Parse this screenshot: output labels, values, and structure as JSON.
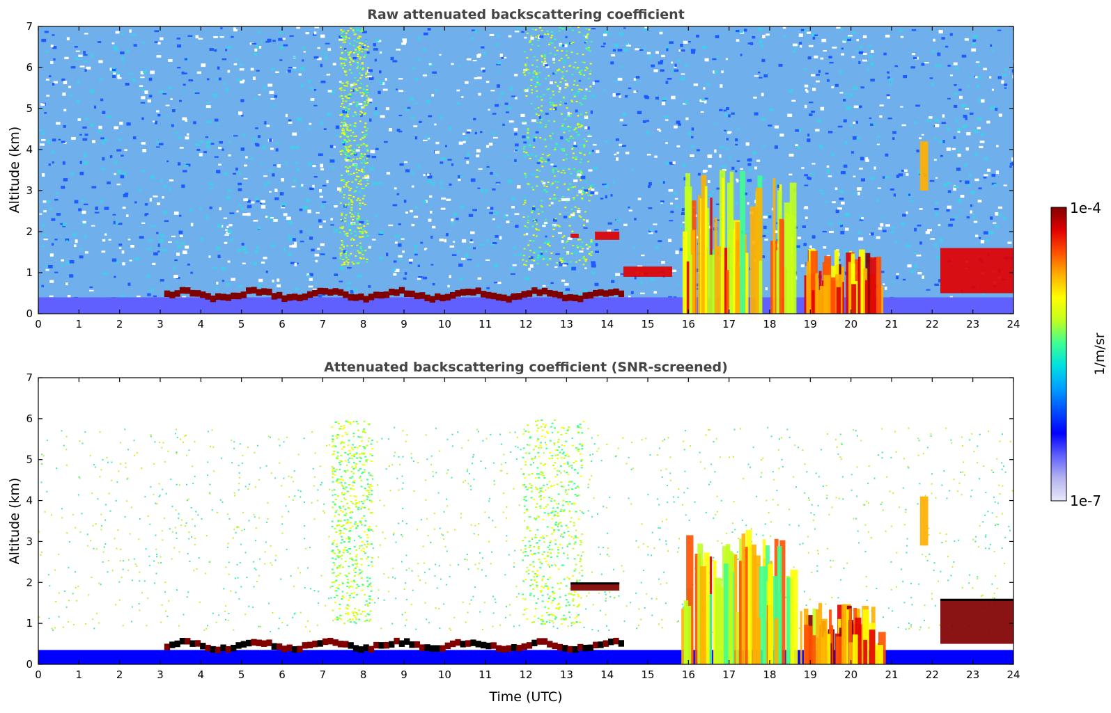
{
  "chart_data": [
    {
      "type": "heatmap",
      "title": "Raw attenuated backscattering coefficient",
      "xlabel": "",
      "ylabel": "Altitude (km)",
      "xlim": [
        0,
        24
      ],
      "ylim": [
        0,
        7
      ],
      "x_ticks": [
        "0",
        "1",
        "2",
        "3",
        "4",
        "5",
        "6",
        "7",
        "8",
        "9",
        "10",
        "11",
        "12",
        "13",
        "14",
        "15",
        "16",
        "17",
        "18",
        "19",
        "20",
        "21",
        "22",
        "23",
        "24"
      ],
      "y_ticks": [
        "0",
        "1",
        "2",
        "3",
        "4",
        "5",
        "6",
        "7"
      ],
      "features": [
        {
          "kind": "near-surface layer",
          "x": [
            0,
            24
          ],
          "y": [
            0,
            0.4
          ],
          "level": 0.18
        },
        {
          "kind": "boundary layer top",
          "x": [
            3.1,
            14.4
          ],
          "y": [
            0.3,
            0.7
          ],
          "level": 0.98
        },
        {
          "kind": "aerosol plume",
          "x": [
            7.4,
            8.1
          ],
          "y": [
            1.2,
            7
          ],
          "level": 0.62
        },
        {
          "kind": "aerosol plume",
          "x": [
            11.9,
            13.6
          ],
          "y": [
            1.2,
            7
          ],
          "level": 0.6
        },
        {
          "kind": "cloud layer",
          "x": [
            13.1,
            13.3
          ],
          "y": [
            1.85,
            1.95
          ],
          "level": 0.96
        },
        {
          "kind": "cloud layer",
          "x": [
            13.7,
            14.3
          ],
          "y": [
            1.8,
            2.0
          ],
          "level": 0.96
        },
        {
          "kind": "cloud layer",
          "x": [
            14.4,
            15.6
          ],
          "y": [
            0.9,
            1.15
          ],
          "level": 0.96
        },
        {
          "kind": "cumulus",
          "x": [
            15.8,
            18.8
          ],
          "y": [
            0,
            3.5
          ],
          "level": 0.8
        },
        {
          "kind": "precipitation",
          "x": [
            18.8,
            20.7
          ],
          "y": [
            0,
            1.6
          ],
          "level": 0.9
        },
        {
          "kind": "elevated aerosol",
          "x": [
            21.7,
            21.9
          ],
          "y": [
            3,
            4.2
          ],
          "level": 0.75
        },
        {
          "kind": "cloud layer",
          "x": [
            22.2,
            24
          ],
          "y": [
            0.5,
            1.6
          ],
          "level": 0.96
        }
      ]
    },
    {
      "type": "heatmap",
      "title": "Attenuated backscattering coefficient (SNR-screened)",
      "xlabel": "Time (UTC)",
      "ylabel": "Altitude (km)",
      "xlim": [
        0,
        24
      ],
      "ylim": [
        0,
        7
      ],
      "x_ticks": [
        "0",
        "1",
        "2",
        "3",
        "4",
        "5",
        "6",
        "7",
        "8",
        "9",
        "10",
        "11",
        "12",
        "13",
        "14",
        "15",
        "16",
        "17",
        "18",
        "19",
        "20",
        "21",
        "22",
        "23",
        "24"
      ],
      "y_ticks": [
        "0",
        "1",
        "2",
        "3",
        "4",
        "5",
        "6",
        "7"
      ],
      "features": [
        {
          "kind": "near-surface layer",
          "x": [
            0,
            24
          ],
          "y": [
            0,
            0.35
          ],
          "level": 0.2
        },
        {
          "kind": "boundary layer top",
          "x": [
            3.1,
            14.4
          ],
          "y": [
            0.3,
            0.7
          ],
          "level": 0.99
        },
        {
          "kind": "aerosol plume",
          "x": [
            7.2,
            8.2
          ],
          "y": [
            1.0,
            6
          ],
          "level": 0.6
        },
        {
          "kind": "aerosol plume",
          "x": [
            11.9,
            13.4
          ],
          "y": [
            1.0,
            6
          ],
          "level": 0.6
        },
        {
          "kind": "cloud layer",
          "x": [
            13.1,
            14.3
          ],
          "y": [
            1.8,
            2.0
          ],
          "level": 0.99
        },
        {
          "kind": "cumulus",
          "x": [
            15.8,
            18.8
          ],
          "y": [
            0,
            3.3
          ],
          "level": 0.8
        },
        {
          "kind": "precipitation",
          "x": [
            18.8,
            20.7
          ],
          "y": [
            0,
            1.5
          ],
          "level": 0.9
        },
        {
          "kind": "elevated aerosol",
          "x": [
            21.7,
            21.9
          ],
          "y": [
            2.9,
            4.1
          ],
          "level": 0.75
        },
        {
          "kind": "cloud layer",
          "x": [
            22.2,
            24
          ],
          "y": [
            0.5,
            1.6
          ],
          "level": 0.99
        }
      ]
    }
  ],
  "colorbar": {
    "min_label": "1e-7",
    "max_label": "1e-4",
    "unit": "1/m/sr",
    "colormap": [
      "#e8e8f8",
      "#b4b4f0",
      "#6060ff",
      "#0000ff",
      "#0050ff",
      "#00a0ff",
      "#00e0e0",
      "#40ff90",
      "#c0ff20",
      "#ffff00",
      "#ffb000",
      "#ff5000",
      "#e00000",
      "#800000"
    ]
  }
}
